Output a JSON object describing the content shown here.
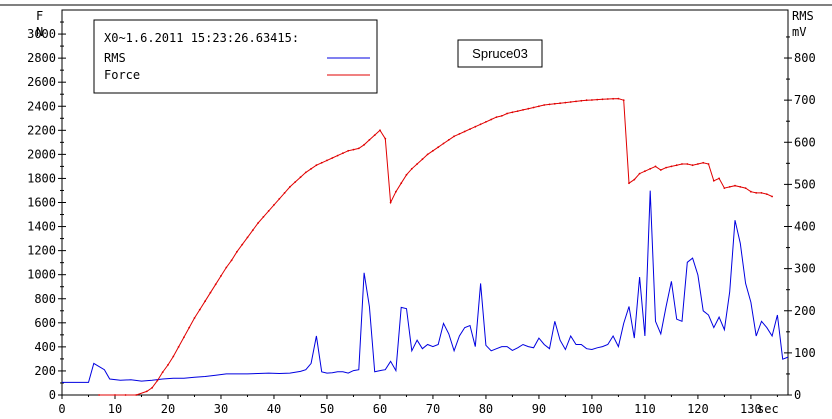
{
  "chart_data": {
    "type": "line",
    "title": "Spruce03",
    "legend_header": "X0~1.6.2011 15:23:26.63415:",
    "left_axis_label": [
      "F",
      "N"
    ],
    "right_axis_label": [
      "RMS",
      "mV"
    ],
    "x_unit_label": "sec",
    "xlim": [
      0,
      137
    ],
    "ylim_left": [
      0,
      3200
    ],
    "ylim_right": [
      0,
      914
    ],
    "x_ticks": [
      "0",
      "10",
      "20",
      "30",
      "40",
      "50",
      "60",
      "70",
      "80",
      "90",
      "100",
      "110",
      "120",
      "130"
    ],
    "y_left_ticks": [
      "0",
      "200",
      "400",
      "600",
      "800",
      "1000",
      "1200",
      "1400",
      "1600",
      "1800",
      "2000",
      "2200",
      "2400",
      "2600",
      "2800",
      "3000"
    ],
    "y_right_ticks": [
      "0",
      "100",
      "200",
      "300",
      "400",
      "500",
      "600",
      "700",
      "800"
    ],
    "legend_placement": "top-left",
    "series": [
      {
        "name": "RMS",
        "axis": "right",
        "color": "#0000e0",
        "x": [
          0,
          3,
          5,
          6,
          8,
          9,
          11,
          13,
          15,
          17,
          19,
          21,
          23,
          25,
          27,
          29,
          31,
          33,
          35,
          37,
          39,
          41,
          43,
          44,
          45,
          46,
          47,
          48,
          49,
          50,
          51,
          52,
          53,
          54,
          55,
          56,
          57,
          58,
          59,
          60,
          61,
          62,
          63,
          64,
          65,
          66,
          67,
          68,
          69,
          70,
          71,
          72,
          73,
          74,
          75,
          76,
          77,
          78,
          79,
          80,
          81,
          82,
          83,
          84,
          85,
          86,
          87,
          88,
          89,
          90,
          91,
          92,
          93,
          94,
          95,
          96,
          97,
          98,
          99,
          100,
          101,
          102,
          103,
          104,
          105,
          106,
          107,
          108,
          109,
          110,
          111,
          112,
          113,
          114,
          115,
          116,
          117,
          118,
          119,
          120,
          121,
          122,
          123,
          124,
          125,
          126,
          127,
          128,
          129,
          130,
          131,
          132,
          133,
          134,
          135,
          136,
          137
        ],
        "values": [
          30,
          30,
          30,
          75,
          60,
          38,
          35,
          36,
          33,
          35,
          38,
          40,
          40,
          42,
          44,
          47,
          50,
          50,
          50,
          51,
          52,
          51,
          52,
          54,
          56,
          60,
          75,
          140,
          55,
          52,
          53,
          55,
          55,
          52,
          58,
          60,
          290,
          210,
          55,
          58,
          60,
          80,
          58,
          208,
          205,
          105,
          130,
          110,
          120,
          115,
          120,
          170,
          145,
          105,
          140,
          160,
          165,
          115,
          265,
          118,
          105,
          110,
          115,
          115,
          106,
          112,
          120,
          115,
          112,
          135,
          120,
          110,
          175,
          130,
          108,
          140,
          120,
          120,
          110,
          108,
          112,
          115,
          120,
          140,
          115,
          170,
          210,
          135,
          280,
          140,
          485,
          175,
          145,
          210,
          270,
          180,
          175,
          315,
          325,
          285,
          200,
          190,
          160,
          185,
          155,
          245,
          415,
          360,
          265,
          220,
          140,
          175,
          160,
          140,
          190,
          85,
          90
        ]
      },
      {
        "name": "Force",
        "axis": "left",
        "color": "#e00000",
        "x": [
          7,
          10,
          12,
          14,
          16,
          17,
          18,
          19,
          20,
          21,
          22,
          23,
          24,
          25,
          26,
          27,
          28,
          29,
          30,
          31,
          32,
          33,
          34,
          35,
          36,
          37,
          38,
          39,
          40,
          41,
          42,
          43,
          44,
          45,
          46,
          47,
          48,
          49,
          50,
          51,
          52,
          53,
          54,
          55,
          56,
          57,
          58,
          59,
          60,
          61,
          62,
          63,
          64,
          65,
          66,
          67,
          68,
          69,
          70,
          71,
          72,
          73,
          74,
          75,
          76,
          77,
          78,
          79,
          80,
          81,
          82,
          83,
          84,
          85,
          86,
          87,
          88,
          89,
          90,
          91,
          92,
          93,
          94,
          95,
          96,
          97,
          98,
          99,
          100,
          101,
          102,
          103,
          104,
          105,
          106,
          107,
          108,
          109,
          110,
          111,
          112,
          113,
          114,
          115,
          116,
          117,
          118,
          119,
          120,
          121,
          122,
          123,
          124,
          125,
          126,
          127,
          128,
          129,
          130,
          131,
          132,
          133,
          134
        ],
        "values": [
          0,
          0,
          0,
          0,
          30,
          60,
          120,
          190,
          250,
          320,
          400,
          480,
          560,
          640,
          710,
          780,
          850,
          920,
          990,
          1060,
          1120,
          1190,
          1250,
          1310,
          1370,
          1430,
          1480,
          1530,
          1580,
          1630,
          1680,
          1730,
          1770,
          1810,
          1850,
          1880,
          1910,
          1930,
          1950,
          1970,
          1990,
          2010,
          2030,
          2040,
          2050,
          2080,
          2120,
          2160,
          2200,
          2130,
          1600,
          1690,
          1760,
          1830,
          1880,
          1920,
          1960,
          2000,
          2030,
          2060,
          2090,
          2120,
          2150,
          2170,
          2190,
          2210,
          2230,
          2250,
          2270,
          2290,
          2310,
          2320,
          2340,
          2350,
          2360,
          2370,
          2380,
          2390,
          2400,
          2410,
          2415,
          2420,
          2425,
          2430,
          2435,
          2440,
          2445,
          2450,
          2452,
          2455,
          2458,
          2460,
          2462,
          2464,
          2450,
          1760,
          1790,
          1840,
          1860,
          1880,
          1900,
          1870,
          1890,
          1900,
          1910,
          1920,
          1920,
          1910,
          1920,
          1930,
          1920,
          1780,
          1800,
          1720,
          1730,
          1740,
          1730,
          1720,
          1690,
          1680,
          1680,
          1670,
          1650
        ]
      }
    ]
  }
}
